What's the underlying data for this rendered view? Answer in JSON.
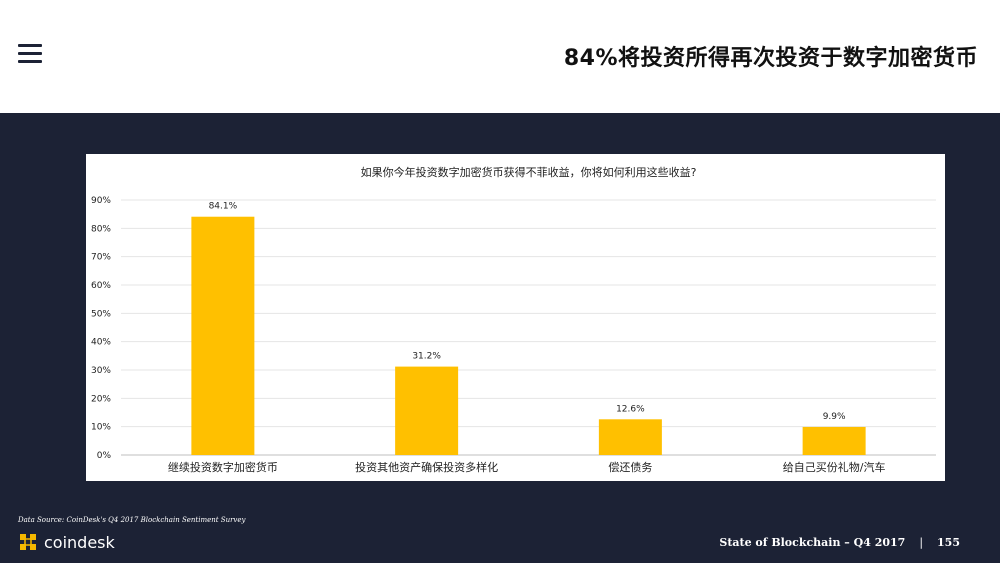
{
  "header": {
    "title": "84%将投资所得再次投资于数字加密货币"
  },
  "chart_data": {
    "type": "bar",
    "title": "如果你今年投资数字加密货币获得不菲收益，你将如何利用这些收益?",
    "categories": [
      "继续投资数字加密货币",
      "投资其他资产确保投资多样化",
      "偿还债务",
      "给自己买份礼物/汽车"
    ],
    "values": [
      84.1,
      31.2,
      12.6,
      9.9
    ],
    "value_labels": [
      "84.1%",
      "31.2%",
      "12.6%",
      "9.9%"
    ],
    "ylim": [
      0,
      90
    ],
    "yticks": [
      0,
      10,
      20,
      30,
      40,
      50,
      60,
      70,
      80,
      90
    ],
    "ytick_labels": [
      "0%",
      "10%",
      "20%",
      "30%",
      "40%",
      "50%",
      "60%",
      "70%",
      "80%",
      "90%"
    ],
    "grid": true,
    "bar_color": "#ffc000"
  },
  "footer": {
    "source": "Data Source: CoinDesk's Q4 2017 Blockchain Sentiment Survey",
    "brand": "coindesk",
    "report": "State of Blockchain – Q4 2017",
    "separator": "|",
    "page_number": "155"
  },
  "colors": {
    "background": "#1c2235",
    "header_bg": "#ffffff",
    "bar": "#ffc000",
    "logo_accent": "#f5b800"
  },
  "icons": [
    "menu-icon",
    "coindesk-logo-icon"
  ]
}
